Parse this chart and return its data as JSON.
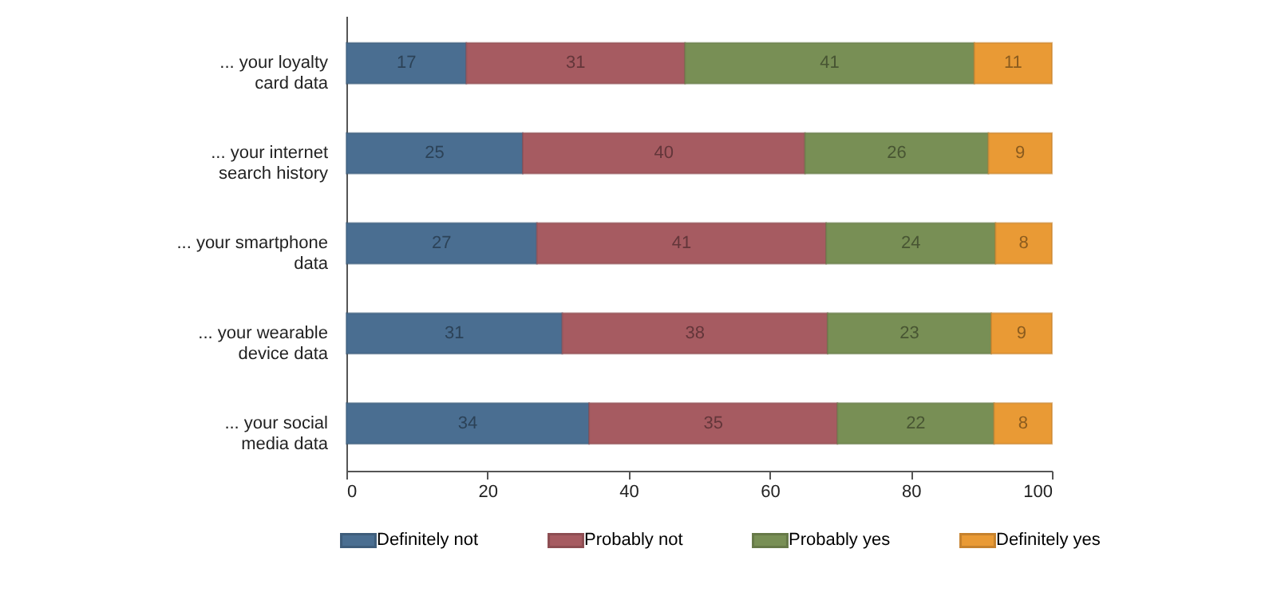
{
  "chart_data": {
    "type": "bar",
    "orientation": "horizontal",
    "stacked": true,
    "grid": false,
    "legend": "bottom",
    "categories": [
      "... your loyalty card data",
      "... your internet search history",
      "... your smartphone data",
      "... your wearable device data",
      "... your social media data"
    ],
    "series": [
      {
        "name": "Definitely not",
        "color": "#4a6e91",
        "values": [
          17,
          25,
          27,
          30.6,
          34.4
        ],
        "value_labels": [
          "17",
          "25",
          "27",
          "31",
          "34"
        ]
      },
      {
        "name": "Probably not",
        "color": "#a65b61",
        "values": [
          31,
          40,
          41,
          37.6,
          35.2
        ],
        "value_labels": [
          "31",
          "40",
          "41",
          "38",
          "35"
        ]
      },
      {
        "name": "Probably yes",
        "color": "#788f55",
        "values": [
          41,
          26,
          24,
          23.2,
          22.2
        ],
        "value_labels": [
          "41",
          "26",
          "24",
          "23",
          "22"
        ]
      },
      {
        "name": "Definitely yes",
        "color": "#e99a35",
        "values": [
          11,
          9,
          8,
          8.6,
          8.2
        ],
        "value_labels": [
          "11",
          "9",
          "8",
          "9",
          "8"
        ]
      }
    ],
    "xlim": [
      0,
      100
    ],
    "xticks": [
      0,
      20,
      40,
      60,
      80,
      100
    ]
  }
}
